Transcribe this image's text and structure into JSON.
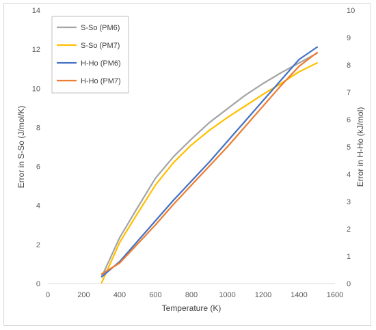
{
  "chart_data": {
    "type": "line",
    "title": "",
    "xlabel": "Temperature (K)",
    "ylabel": "Error in S-So (J/mol/K)",
    "y2label": "Error in H-Ho (kJ/mol)",
    "xlim": [
      0,
      1600
    ],
    "ylim": [
      0,
      14
    ],
    "y2lim": [
      0,
      10
    ],
    "x_ticks": [
      0,
      200,
      400,
      600,
      800,
      1000,
      1200,
      1400,
      1600
    ],
    "y_ticks": [
      0,
      2,
      4,
      6,
      8,
      10,
      12,
      14
    ],
    "y2_ticks": [
      0,
      1,
      2,
      3,
      4,
      5,
      6,
      7,
      8,
      9,
      10
    ],
    "grid": false,
    "legend_position": "top-left",
    "series": [
      {
        "name": "S-So (PM6)",
        "axis": "left",
        "color": "#a5a5a5",
        "x": [
          300,
          400,
          500,
          600,
          700,
          800,
          900,
          1000,
          1100,
          1200,
          1300,
          1400,
          1500
        ],
        "values": [
          0.35,
          2.35,
          3.9,
          5.4,
          6.5,
          7.4,
          8.25,
          8.95,
          9.65,
          10.25,
          10.8,
          11.3,
          11.8
        ]
      },
      {
        "name": "S-So (PM7)",
        "axis": "left",
        "color": "#ffc000",
        "x": [
          300,
          400,
          500,
          600,
          700,
          800,
          900,
          1000,
          1100,
          1200,
          1300,
          1400,
          1500
        ],
        "values": [
          0.05,
          2.1,
          3.6,
          5.05,
          6.2,
          7.1,
          7.85,
          8.5,
          9.1,
          9.7,
          10.25,
          10.85,
          11.3
        ]
      },
      {
        "name": "H-Ho (PM6)",
        "axis": "right",
        "color": "#4472c4",
        "x": [
          300,
          400,
          500,
          600,
          700,
          800,
          900,
          1000,
          1100,
          1200,
          1300,
          1400,
          1500
        ],
        "values": [
          0.25,
          0.8,
          1.55,
          2.3,
          3.05,
          3.75,
          4.45,
          5.2,
          5.95,
          6.7,
          7.45,
          8.2,
          8.65
        ]
      },
      {
        "name": "H-Ho (PM7)",
        "axis": "right",
        "color": "#ed7d31",
        "x": [
          300,
          400,
          500,
          600,
          700,
          800,
          900,
          1000,
          1100,
          1200,
          1300,
          1400,
          1500
        ],
        "values": [
          0.35,
          0.75,
          1.45,
          2.15,
          2.9,
          3.6,
          4.3,
          5.0,
          5.75,
          6.5,
          7.25,
          7.95,
          8.45
        ]
      }
    ]
  }
}
